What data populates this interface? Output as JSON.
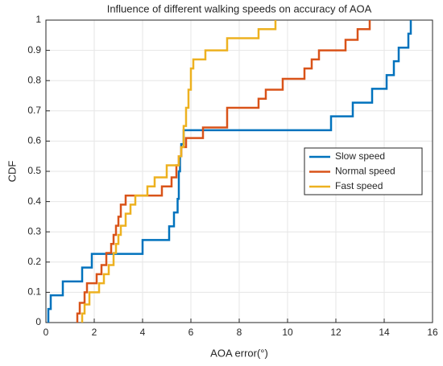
{
  "chart_data": {
    "type": "step",
    "title": "Influence of different walking speeds on accuracy of AOA",
    "xlabel": "AOA error(°)",
    "ylabel": "CDF",
    "xlim": [
      0,
      16
    ],
    "xticks": [
      0,
      2,
      4,
      6,
      8,
      10,
      12,
      14,
      16
    ],
    "ylim": [
      0,
      1
    ],
    "yticks": [
      0,
      0.1,
      0.2,
      0.3,
      0.4,
      0.5,
      0.6,
      0.7,
      0.8,
      0.9,
      1
    ],
    "grid": true,
    "legend": "east",
    "series": [
      {
        "name": "Slow speed",
        "color": "#0072bd",
        "x": [
          0.1,
          0.2,
          0.7,
          1.5,
          1.9,
          4.0,
          5.1,
          5.3,
          5.45,
          5.5,
          5.55,
          5.6,
          5.7,
          11.8,
          12.7,
          13.5,
          14.1,
          14.4,
          14.6,
          15.0,
          15.1
        ],
        "values": [
          0.045,
          0.09,
          0.136,
          0.182,
          0.227,
          0.273,
          0.318,
          0.364,
          0.409,
          0.5,
          0.55,
          0.59,
          0.636,
          0.682,
          0.727,
          0.773,
          0.818,
          0.864,
          0.909,
          0.955,
          1.0
        ]
      },
      {
        "name": "Normal speed",
        "color": "#d95319",
        "x": [
          1.3,
          1.4,
          1.6,
          1.7,
          2.1,
          2.3,
          2.5,
          2.7,
          2.8,
          2.9,
          3.0,
          3.1,
          3.3,
          4.8,
          5.2,
          5.4,
          5.5,
          5.6,
          5.8,
          6.5,
          7.5,
          8.8,
          9.1,
          9.8,
          10.7,
          11.0,
          11.3,
          12.4,
          12.9,
          13.4
        ],
        "values": [
          0.03,
          0.065,
          0.1,
          0.13,
          0.16,
          0.19,
          0.23,
          0.26,
          0.29,
          0.32,
          0.35,
          0.39,
          0.42,
          0.45,
          0.48,
          0.52,
          0.55,
          0.58,
          0.61,
          0.645,
          0.71,
          0.74,
          0.77,
          0.806,
          0.84,
          0.87,
          0.9,
          0.935,
          0.97,
          1.0
        ]
      },
      {
        "name": "Fast speed",
        "color": "#edb120",
        "x": [
          1.5,
          1.6,
          1.8,
          2.2,
          2.4,
          2.6,
          2.8,
          2.9,
          3.0,
          3.1,
          3.3,
          3.5,
          3.7,
          4.2,
          4.5,
          5.0,
          5.5,
          5.6,
          5.7,
          5.8,
          5.9,
          6.0,
          6.1,
          6.6,
          7.5,
          8.8,
          9.5
        ],
        "values": [
          0.03,
          0.06,
          0.1,
          0.13,
          0.16,
          0.19,
          0.23,
          0.26,
          0.29,
          0.32,
          0.36,
          0.39,
          0.42,
          0.45,
          0.48,
          0.52,
          0.55,
          0.58,
          0.65,
          0.71,
          0.77,
          0.84,
          0.87,
          0.9,
          0.94,
          0.97,
          1.0
        ]
      }
    ]
  }
}
